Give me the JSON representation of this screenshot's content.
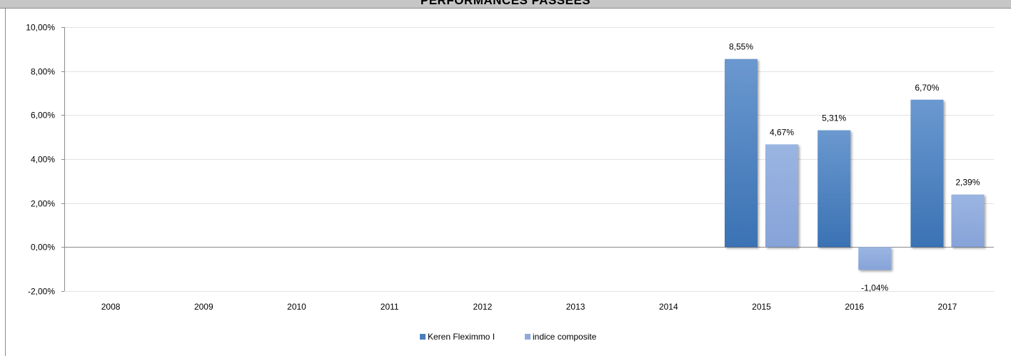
{
  "chart_data": {
    "type": "bar",
    "title": "PERFORMANCES PASSEES",
    "categories": [
      "2008",
      "2009",
      "2010",
      "2011",
      "2012",
      "2013",
      "2014",
      "2015",
      "2016",
      "2017"
    ],
    "series": [
      {
        "name": "Keren Fleximmo I",
        "color": "#4a7ebb",
        "values": [
          null,
          null,
          null,
          null,
          null,
          null,
          null,
          8.55,
          5.31,
          6.7
        ],
        "labels": [
          "",
          "",
          "",
          "",
          "",
          "",
          "",
          "8,55%",
          "5,31%",
          "6,70%"
        ]
      },
      {
        "name": "indice composite",
        "color": "#8faadc",
        "values": [
          null,
          null,
          null,
          null,
          null,
          null,
          null,
          4.67,
          -1.04,
          2.39
        ],
        "labels": [
          "",
          "",
          "",
          "",
          "",
          "",
          "",
          "4,67%",
          "-1,04%",
          "2,39%"
        ]
      }
    ],
    "yticks": [
      -2,
      0,
      2,
      4,
      6,
      8,
      10
    ],
    "ytick_labels": [
      "-2,00%",
      "0,00%",
      "2,00%",
      "4,00%",
      "6,00%",
      "8,00%",
      "10,00%"
    ],
    "ylim": [
      -2,
      10
    ],
    "grid": true,
    "legend_position": "bottom-center"
  }
}
